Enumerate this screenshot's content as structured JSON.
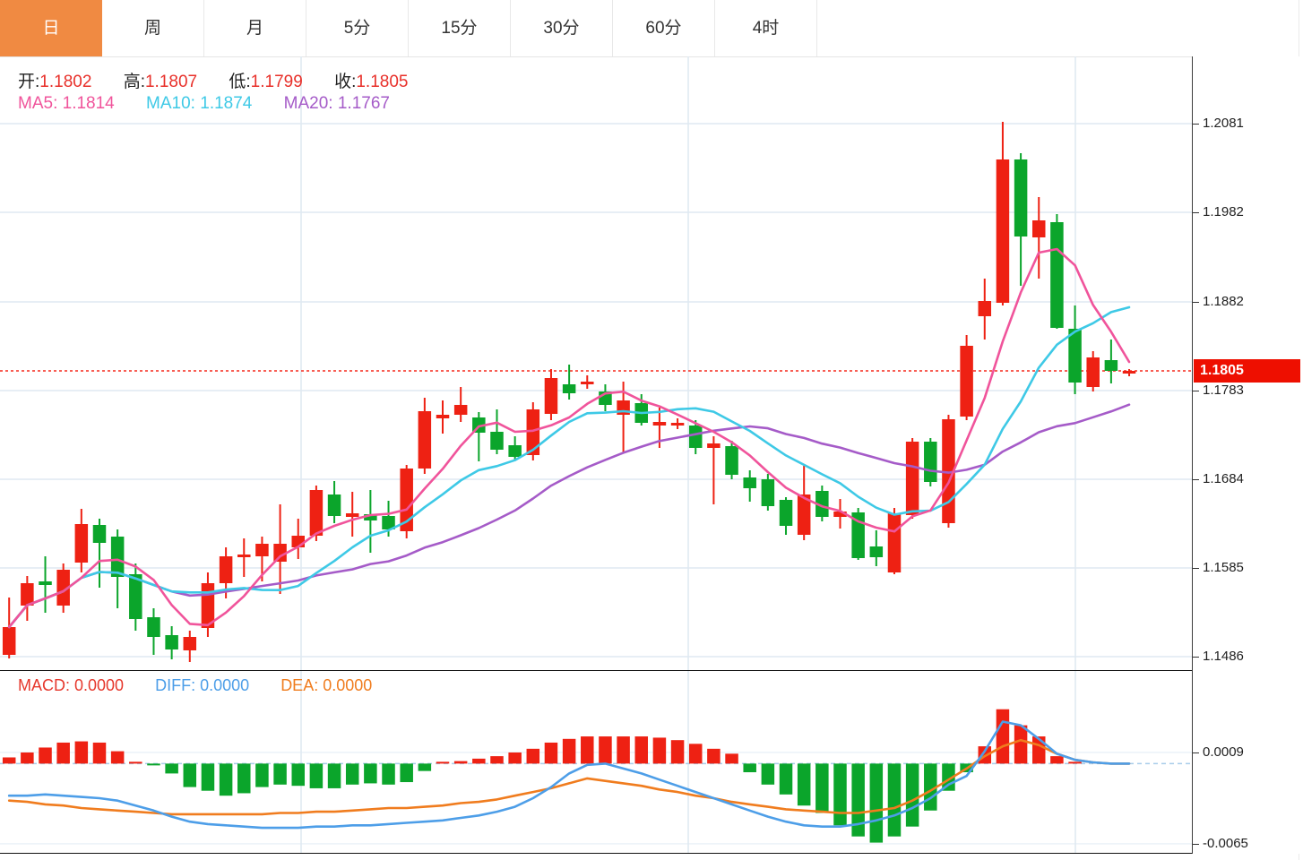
{
  "toolbar": {
    "tabs": [
      {
        "label": "日",
        "active": true
      },
      {
        "label": "周",
        "active": false
      },
      {
        "label": "月",
        "active": false
      },
      {
        "label": "5分",
        "active": false
      },
      {
        "label": "15分",
        "active": false
      },
      {
        "label": "30分",
        "active": false
      },
      {
        "label": "60分",
        "active": false
      },
      {
        "label": "4时",
        "active": false
      }
    ]
  },
  "info": {
    "ohlc": [
      {
        "label": "开:",
        "value": "1.1802",
        "color": "#e8302a"
      },
      {
        "label": "高:",
        "value": "1.1807",
        "color": "#e8302a"
      },
      {
        "label": "低:",
        "value": "1.1799",
        "color": "#e8302a"
      },
      {
        "label": "收:",
        "value": "1.1805",
        "color": "#e8302a"
      }
    ],
    "ma": [
      {
        "label": "MA5:",
        "value": "1.1814",
        "color": "#f0549b"
      },
      {
        "label": "MA10:",
        "value": "1.1874",
        "color": "#3ec9e6"
      },
      {
        "label": "MA20:",
        "value": "1.1767",
        "color": "#a55bc8"
      }
    ]
  },
  "macd_info": [
    {
      "label": "MACD:",
      "value": "0.0000",
      "color": "#e6392e"
    },
    {
      "label": "DIFF:",
      "value": "0.0000",
      "color": "#4d9ee8"
    },
    {
      "label": "DEA:",
      "value": "0.0000",
      "color": "#f07c1e"
    }
  ],
  "price_tag": "1.1805",
  "chart_data": {
    "type": "candlestick",
    "panels": [
      "price-with-ma",
      "macd"
    ],
    "price_ticks": [
      1.2081,
      1.1982,
      1.1882,
      1.1783,
      1.1684,
      1.1585,
      1.1486
    ],
    "price_ylim": [
      1.147,
      1.2156
    ],
    "current_price": 1.1805,
    "ma_periods": [
      5,
      10,
      20
    ],
    "candles_ohlc": [
      [
        1.1488,
        1.1552,
        1.1484,
        1.1519
      ],
      [
        1.1543,
        1.1576,
        1.1526,
        1.1568
      ],
      [
        1.157,
        1.1598,
        1.1535,
        1.1566
      ],
      [
        1.1543,
        1.159,
        1.1535,
        1.1583
      ],
      [
        1.1591,
        1.1651,
        1.158,
        1.1634
      ],
      [
        1.1633,
        1.164,
        1.1563,
        1.1613
      ],
      [
        1.162,
        1.1628,
        1.154,
        1.1575
      ],
      [
        1.1578,
        1.159,
        1.1515,
        1.1528
      ],
      [
        1.153,
        1.154,
        1.1488,
        1.1508
      ],
      [
        1.151,
        1.152,
        1.1483,
        1.1494
      ],
      [
        1.1493,
        1.1515,
        1.148,
        1.1508
      ],
      [
        1.1518,
        1.158,
        1.1508,
        1.1568
      ],
      [
        1.1568,
        1.1608,
        1.1551,
        1.1598
      ],
      [
        1.1597,
        1.1618,
        1.1575,
        1.16
      ],
      [
        1.1598,
        1.162,
        1.157,
        1.1612
      ],
      [
        1.1592,
        1.1656,
        1.1556,
        1.1612
      ],
      [
        1.1608,
        1.164,
        1.1595,
        1.1621
      ],
      [
        1.1621,
        1.1677,
        1.1615,
        1.1672
      ],
      [
        1.1667,
        1.1682,
        1.1635,
        1.1643
      ],
      [
        1.1642,
        1.167,
        1.162,
        1.1646
      ],
      [
        1.1645,
        1.1672,
        1.1602,
        1.1638
      ],
      [
        1.1643,
        1.166,
        1.162,
        1.1628
      ],
      [
        1.1626,
        1.17,
        1.1618,
        1.1696
      ],
      [
        1.1696,
        1.1775,
        1.169,
        1.176
      ],
      [
        1.1752,
        1.1772,
        1.1735,
        1.1756
      ],
      [
        1.1756,
        1.1787,
        1.1748,
        1.1767
      ],
      [
        1.1753,
        1.1759,
        1.1704,
        1.1736
      ],
      [
        1.1737,
        1.1762,
        1.1712,
        1.1717
      ],
      [
        1.1722,
        1.1732,
        1.1706,
        1.1709
      ],
      [
        1.1711,
        1.177,
        1.1705,
        1.1762
      ],
      [
        1.1757,
        1.1807,
        1.175,
        1.1797
      ],
      [
        1.179,
        1.1812,
        1.1773,
        1.178
      ],
      [
        1.179,
        1.18,
        1.1785,
        1.1793
      ],
      [
        1.1782,
        1.179,
        1.176,
        1.1767
      ],
      [
        1.1756,
        1.1793,
        1.1714,
        1.1772
      ],
      [
        1.1769,
        1.1779,
        1.1744,
        1.1747
      ],
      [
        1.1744,
        1.1764,
        1.1719,
        1.1748
      ],
      [
        1.1744,
        1.1752,
        1.174,
        1.1747
      ],
      [
        1.1744,
        1.175,
        1.1712,
        1.1719
      ],
      [
        1.1719,
        1.1732,
        1.1656,
        1.1724
      ],
      [
        1.1721,
        1.1727,
        1.1684,
        1.1689
      ],
      [
        1.1686,
        1.1694,
        1.1659,
        1.1674
      ],
      [
        1.1684,
        1.169,
        1.1649,
        1.1654
      ],
      [
        1.1661,
        1.1664,
        1.1622,
        1.1632
      ],
      [
        1.1622,
        1.1699,
        1.1616,
        1.1667
      ],
      [
        1.1671,
        1.1677,
        1.1637,
        1.1642
      ],
      [
        1.1642,
        1.1662,
        1.1629,
        1.1648
      ],
      [
        1.1647,
        1.1652,
        1.1594,
        1.1596
      ],
      [
        1.1609,
        1.1627,
        1.1587,
        1.1597
      ],
      [
        1.158,
        1.1652,
        1.1578,
        1.1646
      ],
      [
        1.1644,
        1.173,
        1.164,
        1.1726
      ],
      [
        1.1726,
        1.173,
        1.1676,
        1.1681
      ],
      [
        1.1635,
        1.1756,
        1.163,
        1.1751
      ],
      [
        1.1754,
        1.1845,
        1.175,
        1.1833
      ],
      [
        1.1866,
        1.1908,
        1.184,
        1.1883
      ],
      [
        1.1881,
        1.2083,
        1.1878,
        1.2041
      ],
      [
        1.2041,
        1.2048,
        1.19,
        1.1955
      ],
      [
        1.1954,
        1.1999,
        1.1908,
        1.1973
      ],
      [
        1.1971,
        1.198,
        1.1852,
        1.1853
      ],
      [
        1.1852,
        1.1878,
        1.1779,
        1.1792
      ],
      [
        1.1787,
        1.1827,
        1.1782,
        1.182
      ],
      [
        1.1817,
        1.184,
        1.1791,
        1.1805
      ],
      [
        1.1802,
        1.1807,
        1.1799,
        1.1805
      ]
    ],
    "macd": {
      "ticks": [
        0.0009,
        -0.0065
      ],
      "ylim": [
        -0.0073,
        0.0075
      ],
      "hist": [
        0.0005,
        0.0009,
        0.0013,
        0.0017,
        0.0018,
        0.0017,
        0.001,
        0.0001,
        -0.0001,
        -0.0008,
        -0.0019,
        -0.0022,
        -0.0026,
        -0.0024,
        -0.0019,
        -0.0017,
        -0.0018,
        -0.002,
        -0.002,
        -0.0017,
        -0.0016,
        -0.0017,
        -0.0015,
        -0.0006,
        0.0001,
        0.0002,
        0.0004,
        0.0006,
        0.0009,
        0.0012,
        0.0017,
        0.002,
        0.0022,
        0.0022,
        0.0022,
        0.0022,
        0.0021,
        0.0019,
        0.0016,
        0.0012,
        0.0008,
        -0.0007,
        -0.0017,
        -0.0025,
        -0.0034,
        -0.004,
        -0.005,
        -0.0059,
        -0.0064,
        -0.0059,
        -0.0051,
        -0.0038,
        -0.0022,
        -0.0007,
        0.0014,
        0.0044,
        0.0031,
        0.0022,
        0.0006,
        0.0001,
        0.0,
        0.0,
        0.0
      ],
      "diff": [
        -0.0026,
        -0.0026,
        -0.0025,
        -0.0026,
        -0.0027,
        -0.0028,
        -0.003,
        -0.0034,
        -0.0038,
        -0.0043,
        -0.0047,
        -0.0049,
        -0.005,
        -0.0051,
        -0.0052,
        -0.0052,
        -0.0052,
        -0.0051,
        -0.0051,
        -0.005,
        -0.005,
        -0.0049,
        -0.0048,
        -0.0047,
        -0.0046,
        -0.0044,
        -0.0042,
        -0.0039,
        -0.0035,
        -0.0028,
        -0.0019,
        -0.0008,
        -0.0001,
        0.0,
        -0.0004,
        -0.0008,
        -0.0013,
        -0.0018,
        -0.0023,
        -0.0028,
        -0.0033,
        -0.0038,
        -0.0043,
        -0.0047,
        -0.005,
        -0.0051,
        -0.0051,
        -0.0049,
        -0.0046,
        -0.0042,
        -0.0036,
        -0.0028,
        -0.0017,
        -0.001,
        0.001,
        0.0034,
        0.0031,
        0.002,
        0.0008,
        0.0003,
        0.0001,
        0.0,
        0.0
      ],
      "dea": [
        -0.003,
        -0.0031,
        -0.0033,
        -0.0034,
        -0.0036,
        -0.0037,
        -0.0038,
        -0.0039,
        -0.004,
        -0.0041,
        -0.0041,
        -0.0041,
        -0.0041,
        -0.0041,
        -0.0041,
        -0.004,
        -0.004,
        -0.0039,
        -0.0039,
        -0.0038,
        -0.0037,
        -0.0036,
        -0.0036,
        -0.0035,
        -0.0034,
        -0.0032,
        -0.0031,
        -0.0029,
        -0.0026,
        -0.0023,
        -0.002,
        -0.0016,
        -0.0012,
        -0.0014,
        -0.0016,
        -0.0018,
        -0.0021,
        -0.0023,
        -0.0026,
        -0.0028,
        -0.0031,
        -0.0033,
        -0.0035,
        -0.0037,
        -0.0038,
        -0.0039,
        -0.004,
        -0.004,
        -0.0038,
        -0.0036,
        -0.003,
        -0.0022,
        -0.0013,
        -0.0004,
        0.0006,
        0.0014,
        0.0019,
        0.0015,
        0.0008,
        0.0003,
        0.0001,
        0.0,
        0.0
      ]
    },
    "colors": {
      "up": "#ee2113",
      "down": "#0ba52b",
      "ma5": "#f0549b",
      "ma10": "#3ec9e6",
      "ma20": "#a55bc8",
      "diff": "#4d9ee8",
      "dea": "#f07c1e",
      "grid": "#dfe9f2",
      "zero_dash": "#a9cdea",
      "price_line": "#f5291c",
      "tag_bg": "#ee0f00"
    }
  }
}
